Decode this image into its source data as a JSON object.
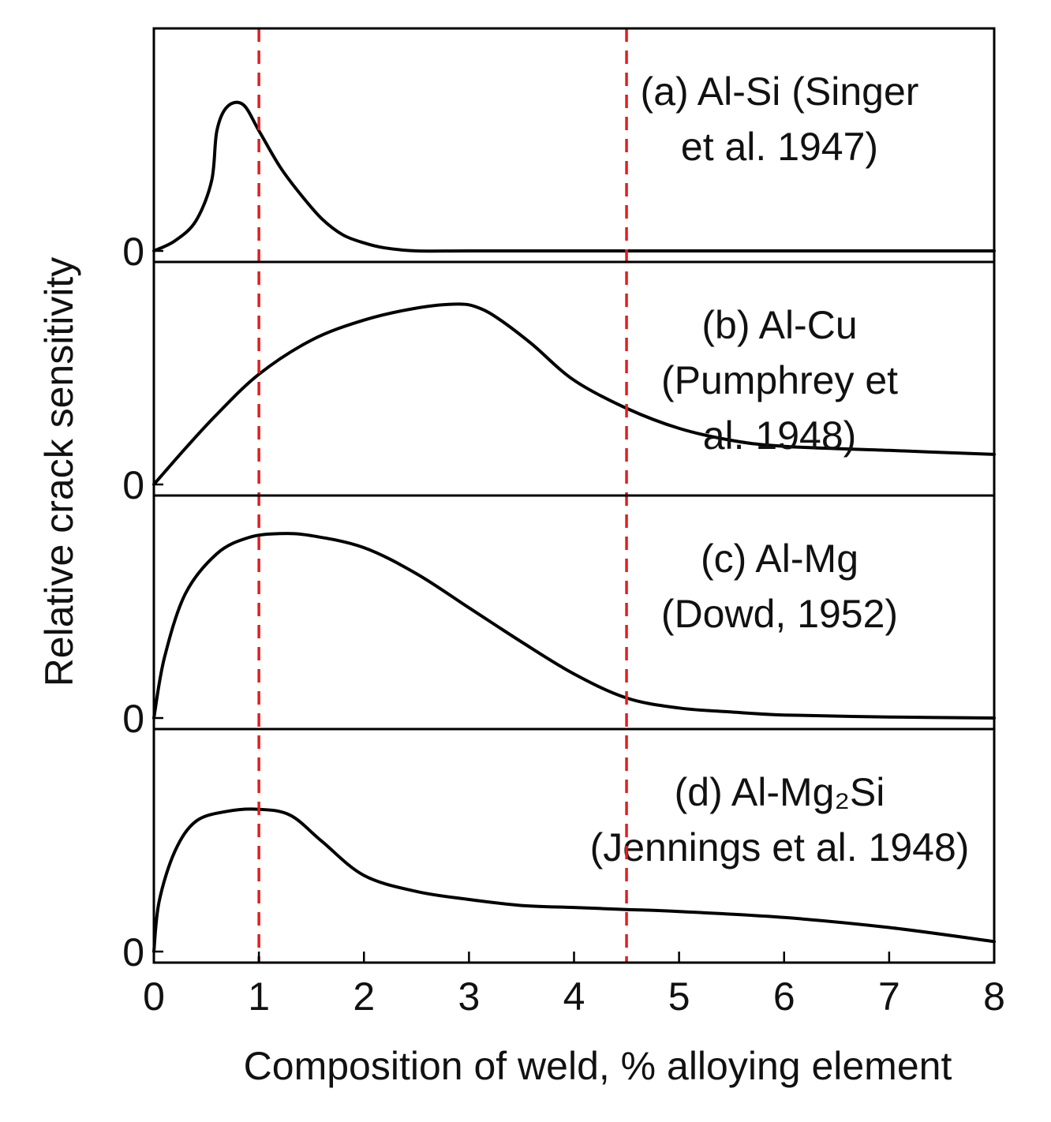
{
  "chart_data": {
    "type": "line",
    "xlabel": "Composition of weld, % alloying element",
    "ylabel": "Relative crack sensitivity",
    "xlim": [
      0,
      8
    ],
    "x_ticks": [
      "0",
      "1",
      "2",
      "3",
      "4",
      "5",
      "6",
      "7",
      "8"
    ],
    "reference_lines": [
      1,
      4.5
    ],
    "reference_line_style": "red dashed vertical",
    "line_color": "#000000",
    "reference_color": "#e21e1e",
    "panels": [
      {
        "label_lines": [
          "(a) Al-Si (Singer",
          "et al. 1947)"
        ],
        "zero_label": "0",
        "ylim": [
          0,
          1
        ],
        "points": [
          [
            0,
            0.0
          ],
          [
            0.2,
            0.05
          ],
          [
            0.4,
            0.15
          ],
          [
            0.55,
            0.35
          ],
          [
            0.6,
            0.6
          ],
          [
            0.7,
            0.72
          ],
          [
            0.85,
            0.73
          ],
          [
            1.0,
            0.6
          ],
          [
            1.2,
            0.42
          ],
          [
            1.4,
            0.28
          ],
          [
            1.6,
            0.16
          ],
          [
            1.8,
            0.08
          ],
          [
            2.0,
            0.04
          ],
          [
            2.2,
            0.015
          ],
          [
            2.5,
            0.0
          ],
          [
            3,
            0.0
          ],
          [
            4,
            0.0
          ],
          [
            5,
            0.0
          ],
          [
            6,
            0.0
          ],
          [
            7,
            0.0
          ],
          [
            8,
            0.0
          ]
        ]
      },
      {
        "label_lines": [
          "(b) Al-Cu",
          "(Pumphrey et",
          "al. 1948)"
        ],
        "zero_label": "0",
        "ylim": [
          0,
          1
        ],
        "points": [
          [
            0,
            0.0
          ],
          [
            0.3,
            0.18
          ],
          [
            0.6,
            0.35
          ],
          [
            1.0,
            0.55
          ],
          [
            1.5,
            0.72
          ],
          [
            2.0,
            0.82
          ],
          [
            2.5,
            0.88
          ],
          [
            2.9,
            0.9
          ],
          [
            3.1,
            0.88
          ],
          [
            3.3,
            0.82
          ],
          [
            3.6,
            0.7
          ],
          [
            4.0,
            0.52
          ],
          [
            4.5,
            0.38
          ],
          [
            5.0,
            0.28
          ],
          [
            5.5,
            0.22
          ],
          [
            6.0,
            0.19
          ],
          [
            7.0,
            0.17
          ],
          [
            8.0,
            0.15
          ]
        ]
      },
      {
        "label_lines": [
          "(c) Al-Mg",
          "(Dowd, 1952)"
        ],
        "zero_label": "0",
        "ylim": [
          0,
          1
        ],
        "points": [
          [
            0,
            0.0
          ],
          [
            0.1,
            0.3
          ],
          [
            0.3,
            0.62
          ],
          [
            0.6,
            0.82
          ],
          [
            0.9,
            0.9
          ],
          [
            1.2,
            0.92
          ],
          [
            1.5,
            0.91
          ],
          [
            2.0,
            0.85
          ],
          [
            2.5,
            0.72
          ],
          [
            3.0,
            0.55
          ],
          [
            3.5,
            0.38
          ],
          [
            4.0,
            0.22
          ],
          [
            4.5,
            0.1
          ],
          [
            5.0,
            0.05
          ],
          [
            5.5,
            0.03
          ],
          [
            6.0,
            0.015
          ],
          [
            7.0,
            0.005
          ],
          [
            8.0,
            0.0
          ]
        ]
      },
      {
        "label_lines": [
          "(d) Al-Mg₂Si",
          "(Jennings et al. 1948)"
        ],
        "zero_label": "0",
        "ylim": [
          0,
          1
        ],
        "points": [
          [
            0,
            0.0
          ],
          [
            0.05,
            0.25
          ],
          [
            0.2,
            0.5
          ],
          [
            0.4,
            0.65
          ],
          [
            0.7,
            0.7
          ],
          [
            1.0,
            0.71
          ],
          [
            1.3,
            0.68
          ],
          [
            1.6,
            0.55
          ],
          [
            2.0,
            0.38
          ],
          [
            2.5,
            0.3
          ],
          [
            3.0,
            0.26
          ],
          [
            3.5,
            0.23
          ],
          [
            4.0,
            0.22
          ],
          [
            4.5,
            0.21
          ],
          [
            5.0,
            0.2
          ],
          [
            6.0,
            0.17
          ],
          [
            7.0,
            0.12
          ],
          [
            8.0,
            0.05
          ]
        ]
      }
    ]
  }
}
